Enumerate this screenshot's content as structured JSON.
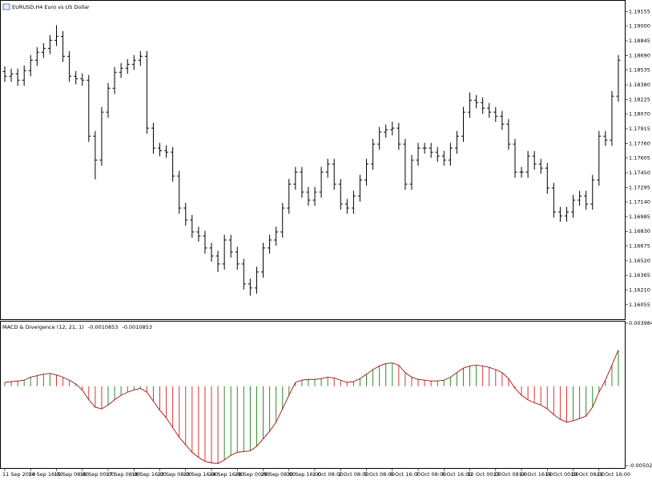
{
  "chart_data": [
    {
      "type": "ohlc",
      "title": "EURUSD,H4  Euro vs US Dollar",
      "color": "#000000",
      "categories": [
        "11 Sep 2020",
        null,
        null,
        null,
        "14 Sep 16:00",
        null,
        null,
        null,
        "15 Sep 08:00",
        null,
        null,
        null,
        "16 Sep 00:00",
        null,
        null,
        null,
        "17 Sep 08:00",
        null,
        null,
        null,
        "18 Sep 16:00",
        null,
        null,
        null,
        "22 Sep 08:00",
        null,
        null,
        null,
        "23 Sep 16:00",
        null,
        null,
        null,
        "24 Sep 16:00",
        null,
        null,
        null,
        "28 Sep 00:00",
        null,
        null,
        null,
        "29 Sep 08:00",
        null,
        null,
        null,
        "30 Sep 16:00",
        null,
        null,
        null,
        "1 Oct 08:00",
        null,
        null,
        null,
        "2 Oct 08:00",
        null,
        null,
        null,
        "5 Oct 08:00",
        null,
        null,
        null,
        "6 Oct 16:00",
        null,
        null,
        null,
        "7 Oct 08:00",
        null,
        null,
        null,
        "8 Oct 16:00",
        null,
        null,
        null,
        "12 Oct 00:00",
        null,
        null,
        null,
        "13 Oct 08:00",
        null,
        null,
        null,
        "14 Oct 16:00",
        null,
        null,
        null,
        "16 Oct 00:00",
        null,
        null,
        null,
        "19 Oct 08:00",
        null,
        null,
        null,
        "21 Oct 16:00",
        null,
        null,
        null
      ],
      "open": [
        1.1852,
        1.18471,
        1.18496,
        1.18429,
        1.1853,
        1.1864,
        1.18724,
        1.18766,
        1.18851,
        1.18893,
        1.18682,
        1.18471,
        1.18445,
        1.18429,
        1.17837,
        1.17584,
        1.18091,
        1.18344,
        1.18513,
        1.18555,
        1.18597,
        1.1864,
        1.18682,
        1.17922,
        1.17711,
        1.17685,
        1.17668,
        1.17415,
        1.17077,
        1.1695,
        1.16824,
        1.16781,
        1.16655,
        1.1657,
        1.16486,
        1.16739,
        1.16612,
        1.16486,
        1.16275,
        1.16232,
        1.16401,
        1.16655,
        1.16739,
        1.16824,
        1.17077,
        1.1733,
        1.17457,
        1.17246,
        1.17161,
        1.17246,
        1.17457,
        1.17542,
        1.1733,
        1.17119,
        1.17077,
        1.17204,
        1.17373,
        1.17542,
        1.17753,
        1.1788,
        1.17905,
        1.17922,
        1.17753,
        1.1733,
        1.17584,
        1.17711,
        1.17711,
        1.17668,
        1.17626,
        1.17584,
        1.17711,
        1.17837,
        1.18091,
        1.18217,
        1.18192,
        1.18133,
        1.18091,
        1.18048,
        1.17964,
        1.17753,
        1.17457,
        1.17457,
        1.17626,
        1.17542,
        1.17499,
        1.17288,
        1.17035,
        1.16993,
        1.17035,
        1.17161,
        1.17204,
        1.17119,
        1.17373,
        1.17837,
        1.17795,
        1.1826
      ],
      "high": [
        1.18575,
        1.18551,
        1.18551,
        1.18585,
        1.18695,
        1.18779,
        1.18821,
        1.18906,
        1.1901,
        1.18948,
        1.18737,
        1.18526,
        1.185,
        1.18484,
        1.17892,
        1.18146,
        1.18399,
        1.18568,
        1.1861,
        1.18652,
        1.18695,
        1.18737,
        1.18737,
        1.17977,
        1.17766,
        1.1774,
        1.17723,
        1.1747,
        1.17132,
        1.17005,
        1.16879,
        1.16836,
        1.1671,
        1.16625,
        1.16794,
        1.16794,
        1.16667,
        1.16541,
        1.1633,
        1.16456,
        1.1671,
        1.16794,
        1.16879,
        1.17132,
        1.17385,
        1.17512,
        1.17512,
        1.17301,
        1.17301,
        1.17512,
        1.17597,
        1.17597,
        1.17385,
        1.17174,
        1.17259,
        1.17428,
        1.17597,
        1.17808,
        1.17935,
        1.1796,
        1.1799,
        1.17977,
        1.17808,
        1.17639,
        1.17766,
        1.17766,
        1.17766,
        1.17723,
        1.17681,
        1.17766,
        1.17892,
        1.18146,
        1.183,
        1.18272,
        1.18247,
        1.18188,
        1.18146,
        1.18103,
        1.18019,
        1.17808,
        1.17512,
        1.17681,
        1.17681,
        1.17597,
        1.17554,
        1.17343,
        1.1709,
        1.1709,
        1.17216,
        1.17259,
        1.17259,
        1.17428,
        1.17892,
        1.17892,
        1.18315,
        1.18695
      ],
      "low": [
        1.18411,
        1.18411,
        1.18369,
        1.18369,
        1.1847,
        1.1858,
        1.18664,
        1.18706,
        1.18791,
        1.18622,
        1.18411,
        1.18385,
        1.18369,
        1.17777,
        1.1738,
        1.17524,
        1.18031,
        1.18284,
        1.18453,
        1.18495,
        1.18537,
        1.1858,
        1.17862,
        1.17651,
        1.17625,
        1.17608,
        1.17355,
        1.17017,
        1.1689,
        1.16764,
        1.16721,
        1.16595,
        1.1651,
        1.164,
        1.16426,
        1.16552,
        1.16426,
        1.16215,
        1.1615,
        1.16172,
        1.16341,
        1.16595,
        1.16679,
        1.16764,
        1.17017,
        1.1727,
        1.17186,
        1.17101,
        1.17101,
        1.17186,
        1.17397,
        1.1727,
        1.17059,
        1.17017,
        1.17017,
        1.17144,
        1.17313,
        1.17482,
        1.17693,
        1.1782,
        1.17845,
        1.17693,
        1.1727,
        1.1727,
        1.17524,
        1.17651,
        1.17608,
        1.17566,
        1.17524,
        1.17524,
        1.17651,
        1.17777,
        1.18031,
        1.18132,
        1.18073,
        1.18031,
        1.17988,
        1.17904,
        1.17693,
        1.17397,
        1.17397,
        1.17397,
        1.17482,
        1.17439,
        1.17228,
        1.16975,
        1.16933,
        1.16933,
        1.16975,
        1.17101,
        1.17059,
        1.17059,
        1.17313,
        1.17735,
        1.17735,
        1.182
      ],
      "close": [
        1.18471,
        1.18496,
        1.18429,
        1.1853,
        1.1864,
        1.18724,
        1.18766,
        1.18851,
        1.18893,
        1.18682,
        1.18471,
        1.18445,
        1.18429,
        1.17837,
        1.17584,
        1.18091,
        1.18344,
        1.18513,
        1.18555,
        1.18597,
        1.1864,
        1.18682,
        1.17922,
        1.17711,
        1.17685,
        1.17668,
        1.17415,
        1.17077,
        1.1695,
        1.16824,
        1.16781,
        1.16655,
        1.1657,
        1.16486,
        1.16739,
        1.16612,
        1.16486,
        1.16275,
        1.16232,
        1.16401,
        1.16655,
        1.16739,
        1.16824,
        1.17077,
        1.1733,
        1.17457,
        1.17246,
        1.17161,
        1.17246,
        1.17457,
        1.17542,
        1.1733,
        1.17119,
        1.17077,
        1.17204,
        1.17373,
        1.17542,
        1.17753,
        1.1788,
        1.17905,
        1.17922,
        1.17753,
        1.1733,
        1.17584,
        1.17711,
        1.17711,
        1.17668,
        1.17626,
        1.17584,
        1.17711,
        1.17837,
        1.18091,
        1.18217,
        1.18192,
        1.18133,
        1.18091,
        1.18048,
        1.17964,
        1.17753,
        1.17457,
        1.17457,
        1.17626,
        1.17542,
        1.17499,
        1.17288,
        1.17035,
        1.16993,
        1.17035,
        1.17161,
        1.17204,
        1.17119,
        1.17373,
        1.17837,
        1.17795,
        1.1826,
        1.1864
      ],
      "ylim": [
        1.1591,
        1.1926
      ],
      "yticks": [
        1.19155,
        {
          "value": 1.19,
          "label": "1.19000"
        },
        1.18845,
        {
          "value": 1.1869,
          "label": "1.18690"
        },
        1.18535,
        {
          "value": 1.1838,
          "label": "1.18380"
        },
        1.18225,
        {
          "value": 1.1807,
          "label": "1.18070"
        },
        1.17915,
        {
          "value": 1.1776,
          "label": "1.17760"
        },
        1.17605,
        {
          "value": 1.1745,
          "label": "1.17450"
        },
        1.17295,
        {
          "value": 1.1714,
          "label": "1.17140"
        },
        1.16985,
        {
          "value": 1.1683,
          "label": "1.16830"
        },
        1.16675,
        {
          "value": 1.1652,
          "label": "1.16520"
        },
        1.16365,
        {
          "value": 1.1621,
          "label": "1.16210"
        },
        1.16055
      ]
    },
    {
      "type": "bar",
      "title": "MACD & Divergence (12, 21, 1)",
      "title_values": [
        -0.0010853,
        -0.0010853
      ],
      "up_color": "#2e8b2e",
      "down_color": "#d03a3a",
      "line_color": "#a01010",
      "values": [
        0.00024,
        0.00029,
        0.00033,
        0.00038,
        0.00057,
        0.00067,
        0.00076,
        0.00081,
        0.00071,
        0.00057,
        0.00038,
        0.00014,
        -0.00024,
        -0.00086,
        -0.00133,
        -0.00143,
        -0.00119,
        -0.00086,
        -0.00057,
        -0.00038,
        -0.00024,
        -0.00014,
        -0.00038,
        -0.00095,
        -0.00152,
        -0.002,
        -0.00261,
        -0.00323,
        -0.00371,
        -0.00418,
        -0.00451,
        -0.00475,
        -0.00485,
        -0.00489,
        -0.00466,
        -0.00437,
        -0.00418,
        -0.00413,
        -0.00409,
        -0.0038,
        -0.00333,
        -0.00285,
        -0.00228,
        -0.00143,
        -0.00057,
        0.00024,
        0.00038,
        0.00043,
        0.00043,
        0.00048,
        0.00057,
        0.00052,
        0.00038,
        0.00024,
        0.00029,
        0.00048,
        0.00076,
        0.00105,
        0.00128,
        0.00143,
        0.00147,
        0.00133,
        0.00086,
        0.00057,
        0.00043,
        0.00038,
        0.00033,
        0.00033,
        0.00038,
        0.00057,
        0.00086,
        0.00114,
        0.00128,
        0.00133,
        0.00128,
        0.00119,
        0.00105,
        0.00086,
        0.00048,
        -0.00014,
        -0.00057,
        -0.00086,
        -0.00105,
        -0.00119,
        -0.00143,
        -0.0018,
        -0.00209,
        -0.00228,
        -0.00219,
        -0.00204,
        -0.0019,
        -0.00133,
        -0.00038,
        0.00038,
        0.00133,
        0.00228
      ],
      "ylim": [
        -0.0050211,
        0.003984
      ],
      "yticks": [
        {
          "value": 0.003984,
          "label": "0.0039840"
        },
        -0.0050211
      ]
    }
  ]
}
